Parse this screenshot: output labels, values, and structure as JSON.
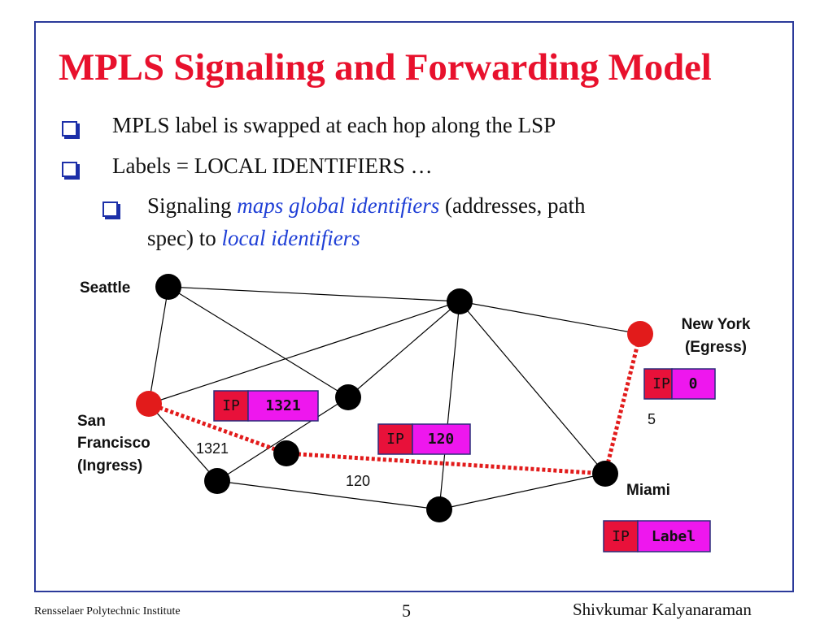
{
  "slide": {
    "title": "MPLS Signaling and Forwarding Model",
    "bullets": [
      "MPLS label is swapped at each hop along the LSP",
      "Labels = LOCAL IDENTIFIERS …"
    ],
    "sub_bullet": {
      "prefix": "Signaling ",
      "emph1": "maps global identifiers",
      "mid": " (addresses, path",
      "line2_prefix": "spec) to ",
      "emph2": "local identifiers"
    }
  },
  "diagram": {
    "cities": {
      "seattle": "Seattle",
      "new_york_line1": "New York",
      "new_york_line2": "(Egress)",
      "sf_line1": "San",
      "sf_line2": "Francisco",
      "sf_line3": "(Ingress)",
      "miami": "Miami"
    },
    "link_labels": [
      "1321",
      "120",
      "5"
    ],
    "packets": [
      {
        "ip": "IP",
        "label": "1321"
      },
      {
        "ip": "IP",
        "label": "120"
      },
      {
        "ip": "IP",
        "label": "0"
      },
      {
        "ip": "IP",
        "label": "Label"
      }
    ],
    "colors": {
      "ip_box": "#e8113a",
      "label_box": "#ee17ee",
      "node": "#000000",
      "edge_node": "#e21b1b",
      "lsp_path": "#e21b1b"
    }
  },
  "footer": {
    "left": "Rensselaer Polytechnic Institute",
    "page": "5",
    "right": "Shivkumar Kalyanaraman"
  }
}
